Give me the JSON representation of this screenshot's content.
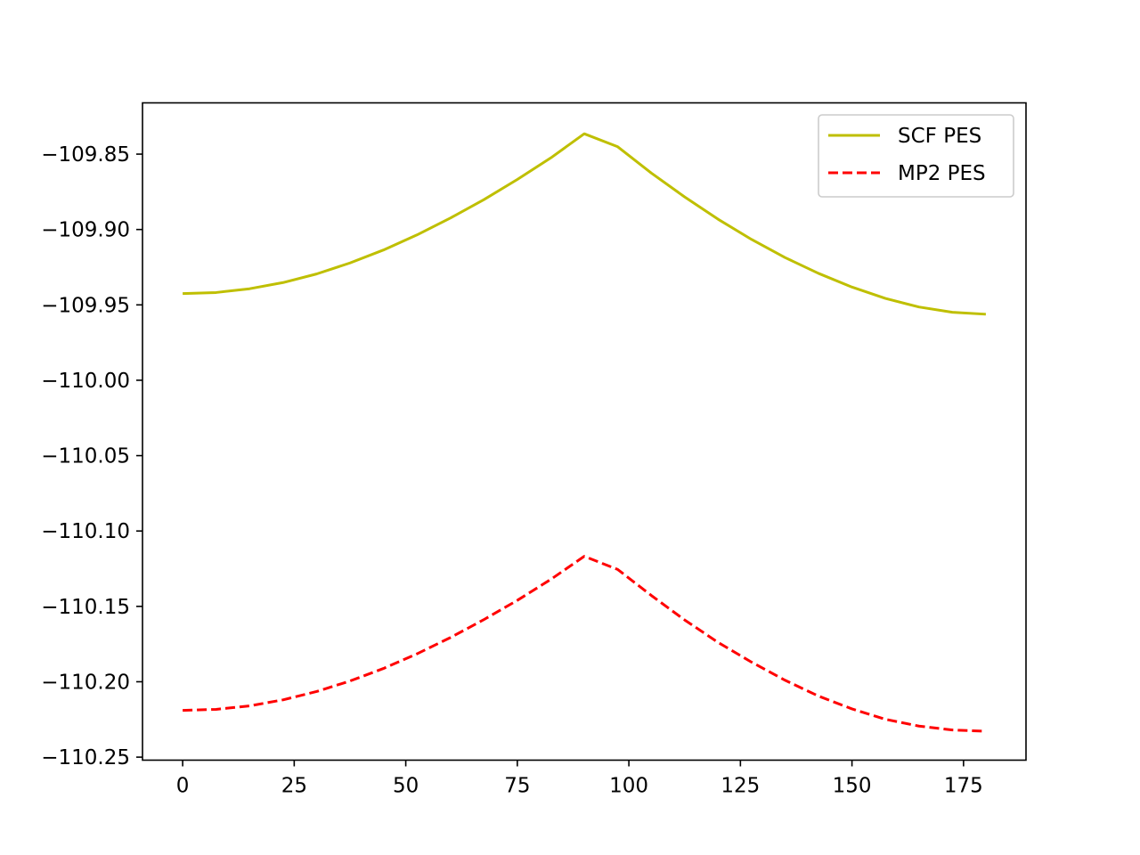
{
  "chart_data": {
    "type": "line",
    "title": "",
    "xlabel": "",
    "ylabel": "",
    "xlim": [
      -9,
      189
    ],
    "ylim": [
      -110.252,
      -109.816
    ],
    "grid": false,
    "legend_position": "top-right",
    "x": [
      0,
      7.5,
      15,
      22.5,
      30,
      37.5,
      45,
      52.5,
      60,
      67.5,
      75,
      82.5,
      90,
      97.5,
      105,
      112.5,
      120,
      127.5,
      135,
      142.5,
      150,
      157.5,
      165,
      172.5,
      180
    ],
    "x_ticks": [
      0,
      25,
      50,
      75,
      100,
      125,
      150,
      175
    ],
    "x_tick_labels": [
      "0",
      "25",
      "50",
      "75",
      "100",
      "125",
      "150",
      "175"
    ],
    "y_ticks": [
      -109.85,
      -109.9,
      -109.95,
      -110.0,
      -110.05,
      -110.1,
      -110.15,
      -110.2,
      -110.25
    ],
    "y_tick_labels": [
      "−109.85",
      "−109.90",
      "−109.95",
      "−110.00",
      "−110.05",
      "−110.10",
      "−110.15",
      "−110.20",
      "−110.25"
    ],
    "series": [
      {
        "name": "SCF PES",
        "color": "#bfbf00",
        "dash": "solid",
        "values": [
          -109.9425,
          -109.9418,
          -109.9393,
          -109.9352,
          -109.9295,
          -109.9222,
          -109.9136,
          -109.9036,
          -109.8924,
          -109.8802,
          -109.8668,
          -109.8525,
          -109.8365,
          -109.8451,
          -109.8625,
          -109.8784,
          -109.8932,
          -109.9066,
          -109.9186,
          -109.9291,
          -109.9382,
          -109.9457,
          -109.9514,
          -109.9549,
          -109.9562
        ]
      },
      {
        "name": "MP2 PES",
        "color": "#ff0000",
        "dash": "dashed",
        "values": [
          -110.219,
          -110.2183,
          -110.216,
          -110.212,
          -110.2065,
          -110.1995,
          -110.1912,
          -110.1815,
          -110.1707,
          -110.1588,
          -110.146,
          -110.1321,
          -110.1168,
          -110.1255,
          -110.1427,
          -110.159,
          -110.1739,
          -110.187,
          -110.199,
          -110.2095,
          -110.218,
          -110.2249,
          -110.2294,
          -110.232,
          -110.2328
        ]
      }
    ]
  }
}
